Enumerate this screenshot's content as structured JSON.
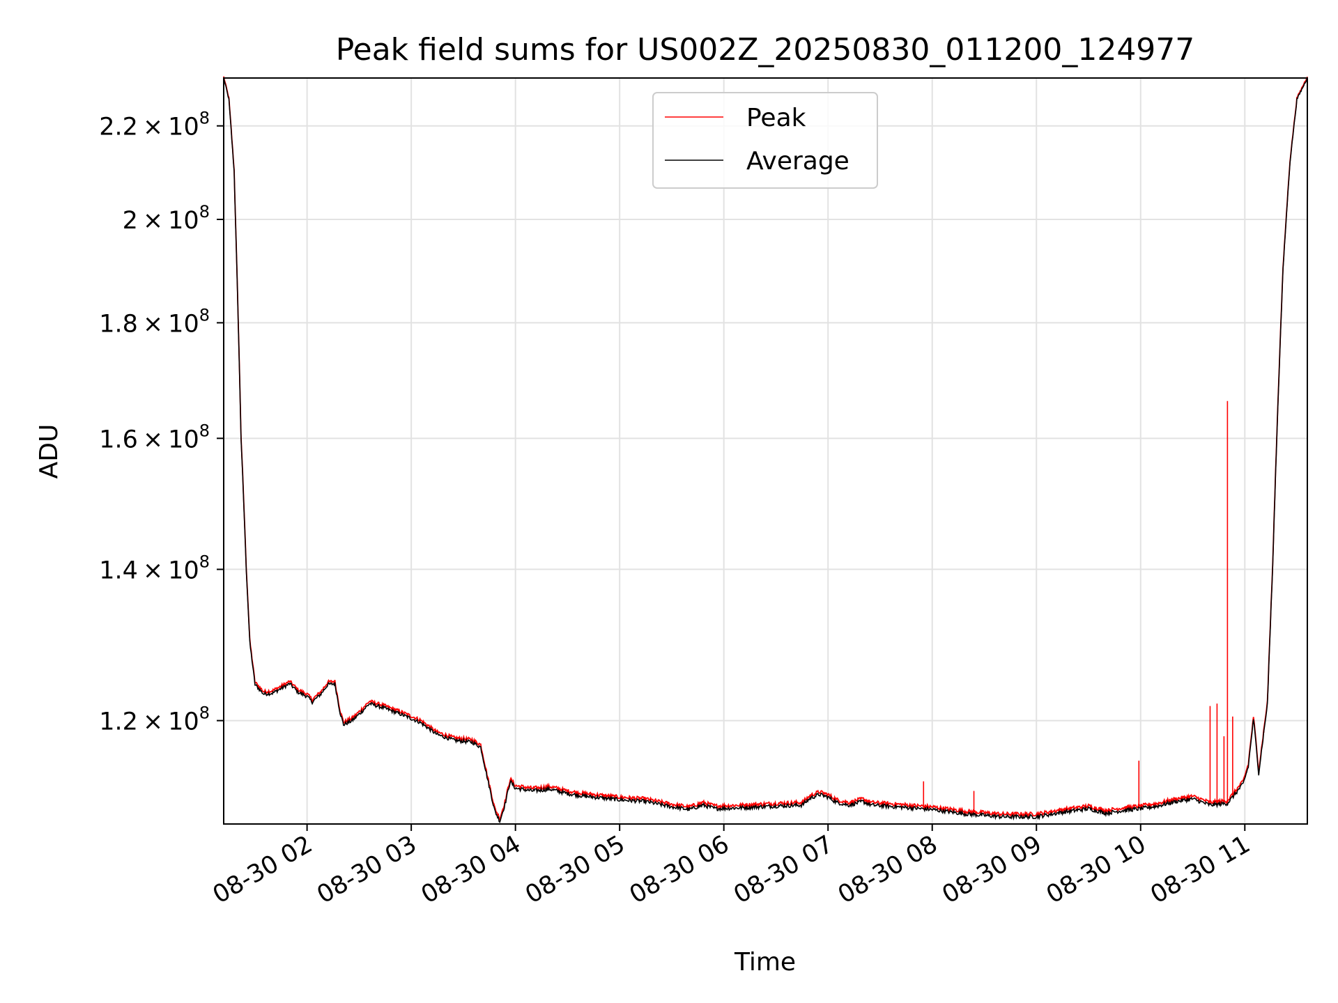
{
  "chart_data": {
    "type": "line",
    "title": "Peak field sums for US002Z_20250830_011200_124977",
    "xlabel": "Time",
    "ylabel": "ADU",
    "x_range": [
      "2025-08-30 01:12",
      "2025-08-30 11:36"
    ],
    "y_range": [
      108000000,
      231000000
    ],
    "y_scale": "log",
    "grid": true,
    "legend_position": "top-center",
    "x_ticks": [
      {
        "time": "2025-08-30 02:00",
        "label": "08-30 02"
      },
      {
        "time": "2025-08-30 03:00",
        "label": "08-30 03"
      },
      {
        "time": "2025-08-30 04:00",
        "label": "08-30 04"
      },
      {
        "time": "2025-08-30 05:00",
        "label": "08-30 05"
      },
      {
        "time": "2025-08-30 06:00",
        "label": "08-30 06"
      },
      {
        "time": "2025-08-30 07:00",
        "label": "08-30 07"
      },
      {
        "time": "2025-08-30 08:00",
        "label": "08-30 08"
      },
      {
        "time": "2025-08-30 09:00",
        "label": "08-30 09"
      },
      {
        "time": "2025-08-30 10:00",
        "label": "08-30 10"
      },
      {
        "time": "2025-08-30 11:00",
        "label": "08-30 11"
      }
    ],
    "y_ticks": [
      {
        "value": 120000000,
        "mantissa": "1.2",
        "base": "10",
        "exp": "8"
      },
      {
        "value": 140000000,
        "mantissa": "1.4",
        "base": "10",
        "exp": "8"
      },
      {
        "value": 160000000,
        "mantissa": "1.6",
        "base": "10",
        "exp": "8"
      },
      {
        "value": 180000000,
        "mantissa": "1.8",
        "base": "10",
        "exp": "8"
      },
      {
        "value": 200000000,
        "mantissa": "2",
        "base": "10",
        "exp": "8"
      },
      {
        "value": 220000000,
        "mantissa": "2.2",
        "base": "10",
        "exp": "8"
      }
    ],
    "series": [
      {
        "name": "Average",
        "color": "#000000",
        "points": [
          [
            "2025-08-30 01:12",
            231000000
          ],
          [
            "2025-08-30 01:15",
            226000000
          ],
          [
            "2025-08-30 01:18",
            210000000
          ],
          [
            "2025-08-30 01:20",
            185000000
          ],
          [
            "2025-08-30 01:22",
            160000000
          ],
          [
            "2025-08-30 01:25",
            140000000
          ],
          [
            "2025-08-30 01:27",
            130000000
          ],
          [
            "2025-08-30 01:30",
            124500000
          ],
          [
            "2025-08-30 01:35",
            123300000
          ],
          [
            "2025-08-30 01:40",
            123400000
          ],
          [
            "2025-08-30 01:46",
            124100000
          ],
          [
            "2025-08-30 01:50",
            124600000
          ],
          [
            "2025-08-30 01:55",
            123500000
          ],
          [
            "2025-08-30 02:00",
            123000000
          ],
          [
            "2025-08-30 02:03",
            122300000
          ],
          [
            "2025-08-30 02:08",
            123300000
          ],
          [
            "2025-08-30 02:12",
            124500000
          ],
          [
            "2025-08-30 02:16",
            124600000
          ],
          [
            "2025-08-30 02:19",
            121000000
          ],
          [
            "2025-08-30 02:21",
            119500000
          ],
          [
            "2025-08-30 02:26",
            120000000
          ],
          [
            "2025-08-30 02:31",
            121000000
          ],
          [
            "2025-08-30 02:36",
            122100000
          ],
          [
            "2025-08-30 02:45",
            121500000
          ],
          [
            "2025-08-30 02:55",
            120700000
          ],
          [
            "2025-08-30 03:05",
            119800000
          ],
          [
            "2025-08-30 03:15",
            118300000
          ],
          [
            "2025-08-30 03:25",
            117600000
          ],
          [
            "2025-08-30 03:35",
            117400000
          ],
          [
            "2025-08-30 03:40",
            116800000
          ],
          [
            "2025-08-30 03:44",
            113000000
          ],
          [
            "2025-08-30 03:48",
            109500000
          ],
          [
            "2025-08-30 03:51",
            108300000
          ],
          [
            "2025-08-30 03:54",
            110200000
          ],
          [
            "2025-08-30 03:57",
            112800000
          ],
          [
            "2025-08-30 04:00",
            112000000
          ],
          [
            "2025-08-30 04:10",
            111700000
          ],
          [
            "2025-08-30 04:20",
            111900000
          ],
          [
            "2025-08-30 04:30",
            111400000
          ],
          [
            "2025-08-30 04:40",
            111100000
          ],
          [
            "2025-08-30 04:50",
            110900000
          ],
          [
            "2025-08-30 05:00",
            110700000
          ],
          [
            "2025-08-30 05:15",
            110500000
          ],
          [
            "2025-08-30 05:30",
            109900000
          ],
          [
            "2025-08-30 05:40",
            109600000
          ],
          [
            "2025-08-30 05:48",
            110100000
          ],
          [
            "2025-08-30 05:55",
            109700000
          ],
          [
            "2025-08-30 06:10",
            109800000
          ],
          [
            "2025-08-30 06:30",
            110000000
          ],
          [
            "2025-08-30 06:45",
            110100000
          ],
          [
            "2025-08-30 06:50",
            110900000
          ],
          [
            "2025-08-30 06:55",
            111300000
          ],
          [
            "2025-08-30 07:00",
            111000000
          ],
          [
            "2025-08-30 07:05",
            110400000
          ],
          [
            "2025-08-30 07:12",
            110100000
          ],
          [
            "2025-08-30 07:20",
            110500000
          ],
          [
            "2025-08-30 07:25",
            110100000
          ],
          [
            "2025-08-30 07:40",
            109900000
          ],
          [
            "2025-08-30 08:00",
            109600000
          ],
          [
            "2025-08-30 08:20",
            109100000
          ],
          [
            "2025-08-30 08:40",
            108800000
          ],
          [
            "2025-08-30 09:00",
            108800000
          ],
          [
            "2025-08-30 09:15",
            109300000
          ],
          [
            "2025-08-30 09:30",
            109700000
          ],
          [
            "2025-08-30 09:40",
            109200000
          ],
          [
            "2025-08-30 09:50",
            109500000
          ],
          [
            "2025-08-30 10:00",
            109700000
          ],
          [
            "2025-08-30 10:10",
            110000000
          ],
          [
            "2025-08-30 10:20",
            110500000
          ],
          [
            "2025-08-30 10:30",
            110800000
          ],
          [
            "2025-08-30 10:40",
            110100000
          ],
          [
            "2025-08-30 10:50",
            110300000
          ],
          [
            "2025-08-30 10:55",
            111500000
          ],
          [
            "2025-08-30 10:59",
            112500000
          ],
          [
            "2025-08-30 11:02",
            114500000
          ],
          [
            "2025-08-30 11:05",
            120200000
          ],
          [
            "2025-08-30 11:08",
            113700000
          ],
          [
            "2025-08-30 11:10",
            117000000
          ],
          [
            "2025-08-30 11:13",
            122000000
          ],
          [
            "2025-08-30 11:16",
            140000000
          ],
          [
            "2025-08-30 11:19",
            165000000
          ],
          [
            "2025-08-30 11:22",
            190000000
          ],
          [
            "2025-08-30 11:26",
            212000000
          ],
          [
            "2025-08-30 11:30",
            226000000
          ],
          [
            "2025-08-30 11:36",
            231000000
          ]
        ]
      },
      {
        "name": "Peak",
        "color": "#ff0000",
        "offset": 300000,
        "spikes": [
          [
            "2025-08-30 07:55",
            112800000
          ],
          [
            "2025-08-30 08:24",
            111700000
          ],
          [
            "2025-08-30 09:59",
            115200000
          ],
          [
            "2025-08-30 10:25",
            111100000
          ],
          [
            "2025-08-30 10:40",
            121800000
          ],
          [
            "2025-08-30 10:44",
            122100000
          ],
          [
            "2025-08-30 10:48",
            118100000
          ],
          [
            "2025-08-30 10:50",
            166200000
          ],
          [
            "2025-08-30 10:53",
            120500000
          ],
          [
            "2025-08-30 11:11",
            118800000
          ]
        ]
      }
    ]
  }
}
